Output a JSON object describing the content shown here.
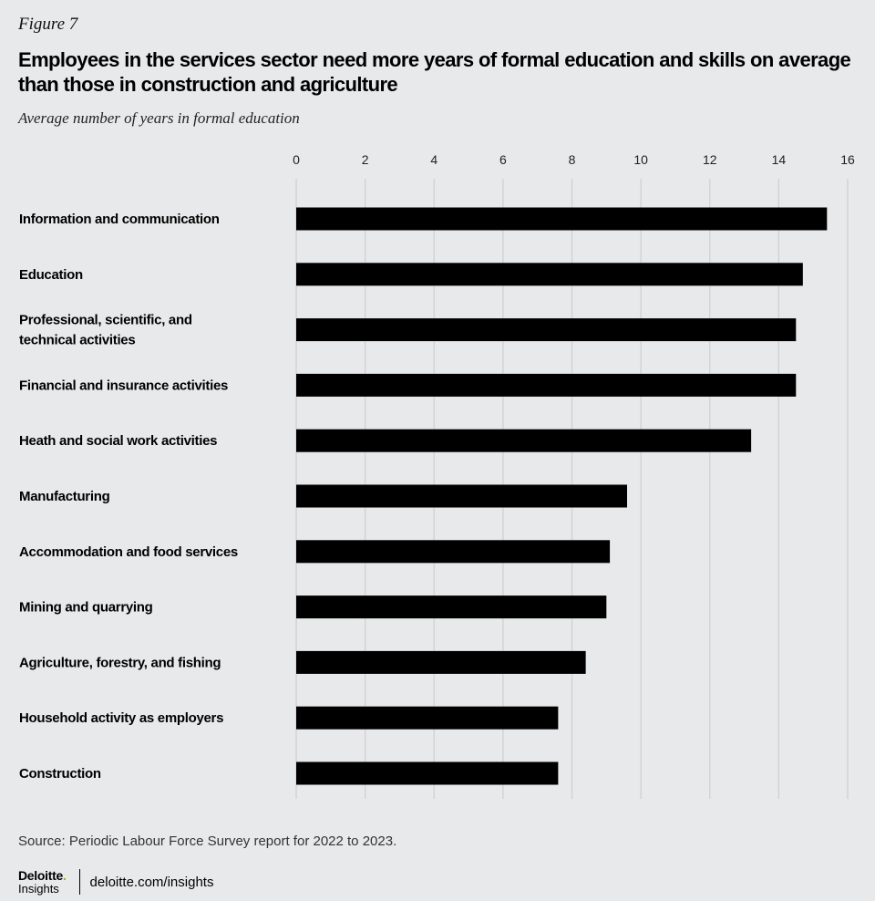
{
  "figure_label": "Figure 7",
  "chart_data": {
    "type": "bar",
    "orientation": "horizontal",
    "title": "Employees in the services sector need more years of formal education and skills on average than those in construction and agriculture",
    "subtitle": "Average number of years in formal education",
    "categories": [
      [
        "Information and communication"
      ],
      [
        "Education"
      ],
      [
        "Professional, scientific,  and",
        "technical activities"
      ],
      [
        "Financial and insurance activities"
      ],
      [
        "Heath and social work activities"
      ],
      [
        "Manufacturing"
      ],
      [
        "Accommodation and food services"
      ],
      [
        "Mining and quarrying"
      ],
      [
        "Agriculture, forestry, and fishing"
      ],
      [
        "Household activity as employers"
      ],
      [
        "Construction"
      ]
    ],
    "values": [
      15.4,
      14.7,
      14.5,
      14.5,
      13.2,
      9.6,
      9.1,
      9.0,
      8.4,
      7.6,
      7.6
    ],
    "xlim": [
      0,
      16
    ],
    "xticks": [
      0,
      2,
      4,
      6,
      8,
      10,
      12,
      14,
      16
    ],
    "grid": "vertical",
    "bar_color": "#000000",
    "grid_color": "#cfd1d3"
  },
  "source": "Source: Periodic Labour Force Survey report for 2022 to 2023.",
  "footer": {
    "logo_word": "Deloitte",
    "logo_dot": ".",
    "logo_sub": "Insights",
    "url": "deloitte.com/insights"
  }
}
